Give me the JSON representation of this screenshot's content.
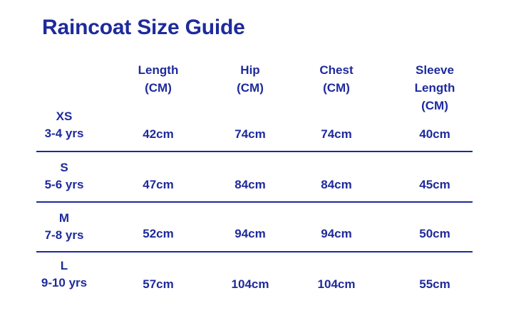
{
  "title": "Raincoat Size Guide",
  "colors": {
    "text": "#1e2a9c",
    "divider": "#1e2a9c",
    "background": "#ffffff"
  },
  "columns": [
    {
      "lines": [
        "Length",
        "(CM)"
      ]
    },
    {
      "lines": [
        "Hip",
        "(CM)"
      ]
    },
    {
      "lines": [
        "Chest",
        "(CM)"
      ]
    },
    {
      "lines": [
        "Sleeve",
        "Length",
        "(CM)"
      ]
    }
  ],
  "rows": [
    {
      "size": "XS",
      "age": "3-4 yrs",
      "values": [
        "42cm",
        "74cm",
        "74cm",
        "40cm"
      ]
    },
    {
      "size": "S",
      "age": "5-6 yrs",
      "values": [
        "47cm",
        "84cm",
        "84cm",
        "45cm"
      ]
    },
    {
      "size": "M",
      "age": "7-8 yrs",
      "values": [
        "52cm",
        "94cm",
        "94cm",
        "50cm"
      ]
    },
    {
      "size": "L",
      "age": "9-10 yrs",
      "values": [
        "57cm",
        "104cm",
        "104cm",
        "55cm"
      ]
    }
  ]
}
